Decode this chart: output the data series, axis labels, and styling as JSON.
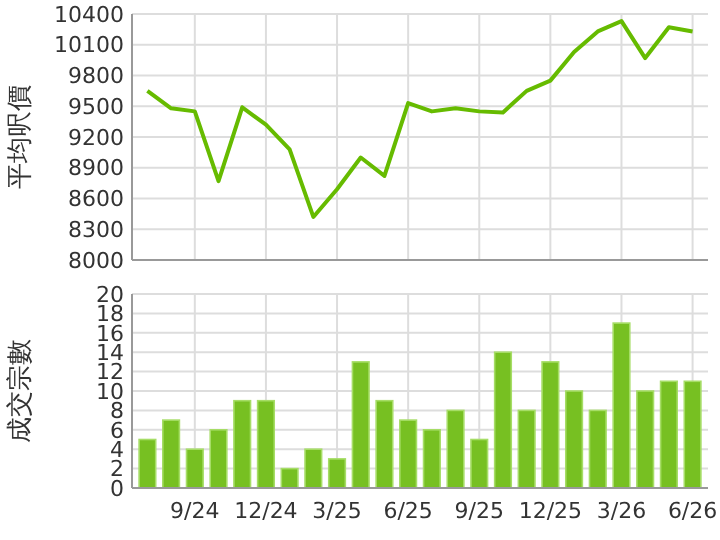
{
  "chart_data": [
    {
      "type": "line",
      "ylabel": "平均呎價",
      "categories": [
        null,
        null,
        null,
        null,
        null,
        null,
        null,
        null,
        null,
        null,
        null,
        null,
        null,
        null,
        null,
        null,
        null,
        null,
        null,
        null,
        null,
        null,
        null,
        null
      ],
      "tick_labels": "y",
      "ylim": [
        8000,
        10400
      ],
      "yticks": [
        8000,
        8300,
        8600,
        8900,
        9200,
        9500,
        9800,
        10100,
        10400
      ],
      "grid": true,
      "marker": "none",
      "series": [
        {
          "color": "#66bb00",
          "values": [
            9650,
            9480,
            9450,
            8770,
            9490,
            9320,
            9080,
            8420,
            8690,
            9000,
            8820,
            9530,
            9450,
            9480,
            9450,
            9440,
            9650,
            9750,
            10030,
            10230,
            10330,
            9970,
            10270,
            10230
          ]
        }
      ]
    },
    {
      "type": "bar",
      "ylabel": "成交宗數",
      "categories": [
        null,
        null,
        "9/24",
        null,
        null,
        "12/24",
        null,
        null,
        "3/25",
        null,
        null,
        "6/25",
        null,
        null,
        "9/25",
        null,
        null,
        "12/25",
        null,
        null,
        "3/26",
        null,
        null,
        "6/26"
      ],
      "ylim": [
        0,
        20
      ],
      "yticks": [
        0,
        2,
        4,
        6,
        8,
        10,
        12,
        14,
        16,
        18,
        20
      ],
      "grid": true,
      "series": [
        {
          "color": "#77c022",
          "values": [
            5,
            7,
            4,
            6,
            9,
            9,
            2,
            4,
            3,
            13,
            9,
            7,
            6,
            8,
            5,
            14,
            8,
            13,
            10,
            8,
            17,
            10,
            11,
            11
          ]
        }
      ]
    }
  ]
}
